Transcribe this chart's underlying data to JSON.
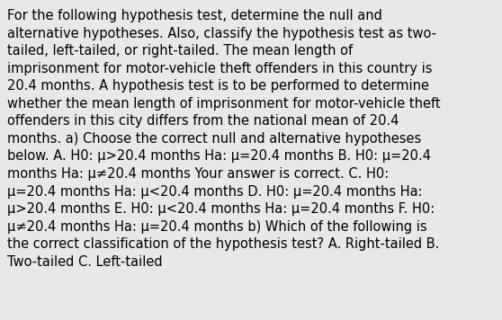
{
  "background_color": "#e8e8e8",
  "text_color": "#000000",
  "font_size": 10.5,
  "fig_width": 5.58,
  "fig_height": 3.56,
  "lines": [
    "For the following hypothesis test, determine the null and",
    "alternative hypotheses. Also, classify the hypothesis test as two-",
    "tailed, left-tailed, or right-tailed. The mean length of",
    "imprisonment for motor-vehicle theft offenders in this country is",
    "20.4 months. A hypothesis test is to be performed to determine",
    "whether the mean length of imprisonment for motor-vehicle theft",
    "offenders in this city differs from the national mean of 20.4",
    "months. a) Choose the correct null and alternative hypotheses",
    "below. A. H0: μ>20.4 months Ha: μ=20.4 months B. H0: μ=20.4",
    "months Ha: μ≠20.4 months Your answer is correct. C. H0:",
    "μ=20.4 months Ha: μ<20.4 months D. H0: μ=20.4 months Ha:",
    "μ>20.4 months E. H0: μ<20.4 months Ha: μ=20.4 months F. H0:",
    "μ≠20.4 months Ha: μ=20.4 months b) Which of the following is",
    "the correct classification of the hypothesis test? A. Right-tailed B.",
    "Two-tailed C. Left-tailed"
  ]
}
